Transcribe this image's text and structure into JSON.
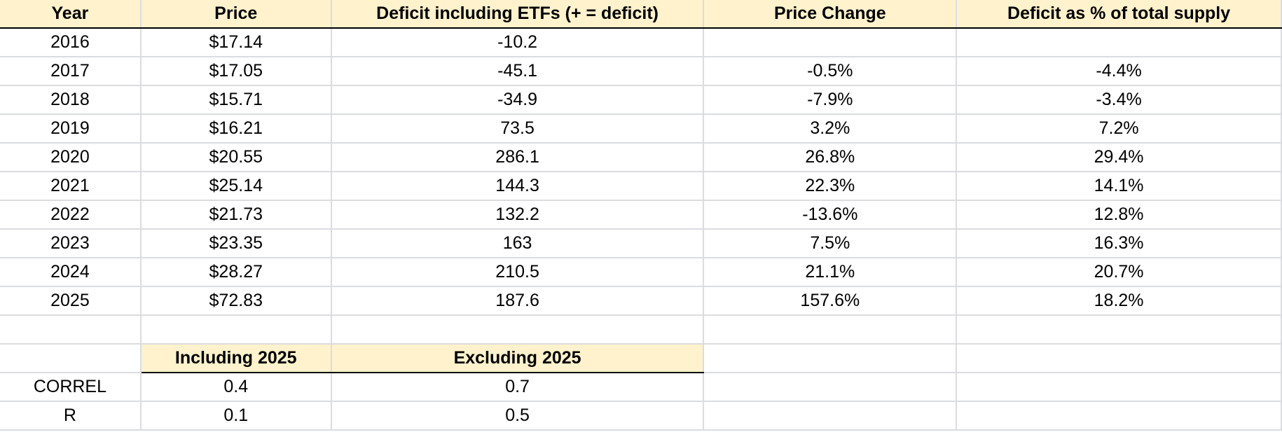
{
  "header": [
    "Year",
    "Price",
    "Deficit including ETFs (+ = deficit)",
    "Price Change",
    "Deficit as % of total supply"
  ],
  "rows": [
    [
      "2016",
      "$17.14",
      "-10.2",
      "",
      ""
    ],
    [
      "2017",
      "$17.05",
      "-45.1",
      "-0.5%",
      "-4.4%"
    ],
    [
      "2018",
      "$15.71",
      "-34.9",
      "-7.9%",
      "-3.4%"
    ],
    [
      "2019",
      "$16.21",
      "73.5",
      "3.2%",
      "7.2%"
    ],
    [
      "2020",
      "$20.55",
      "286.1",
      "26.8%",
      "29.4%"
    ],
    [
      "2021",
      "$25.14",
      "144.3",
      "22.3%",
      "14.1%"
    ],
    [
      "2022",
      "$21.73",
      "132.2",
      "-13.6%",
      "12.8%"
    ],
    [
      "2023",
      "$23.35",
      "163",
      "7.5%",
      "16.3%"
    ],
    [
      "2024",
      "$28.27",
      "210.5",
      "21.1%",
      "20.7%"
    ],
    [
      "2025",
      "$72.83",
      "187.6",
      "157.6%",
      "18.2%"
    ]
  ],
  "correlation": {
    "header": [
      "Including 2025",
      "Excluding 2025"
    ],
    "rows": [
      {
        "label": "CORREL",
        "values": [
          "0.4",
          "0.7"
        ]
      },
      {
        "label": "R",
        "values": [
          "0.1",
          "0.5"
        ]
      }
    ]
  }
}
